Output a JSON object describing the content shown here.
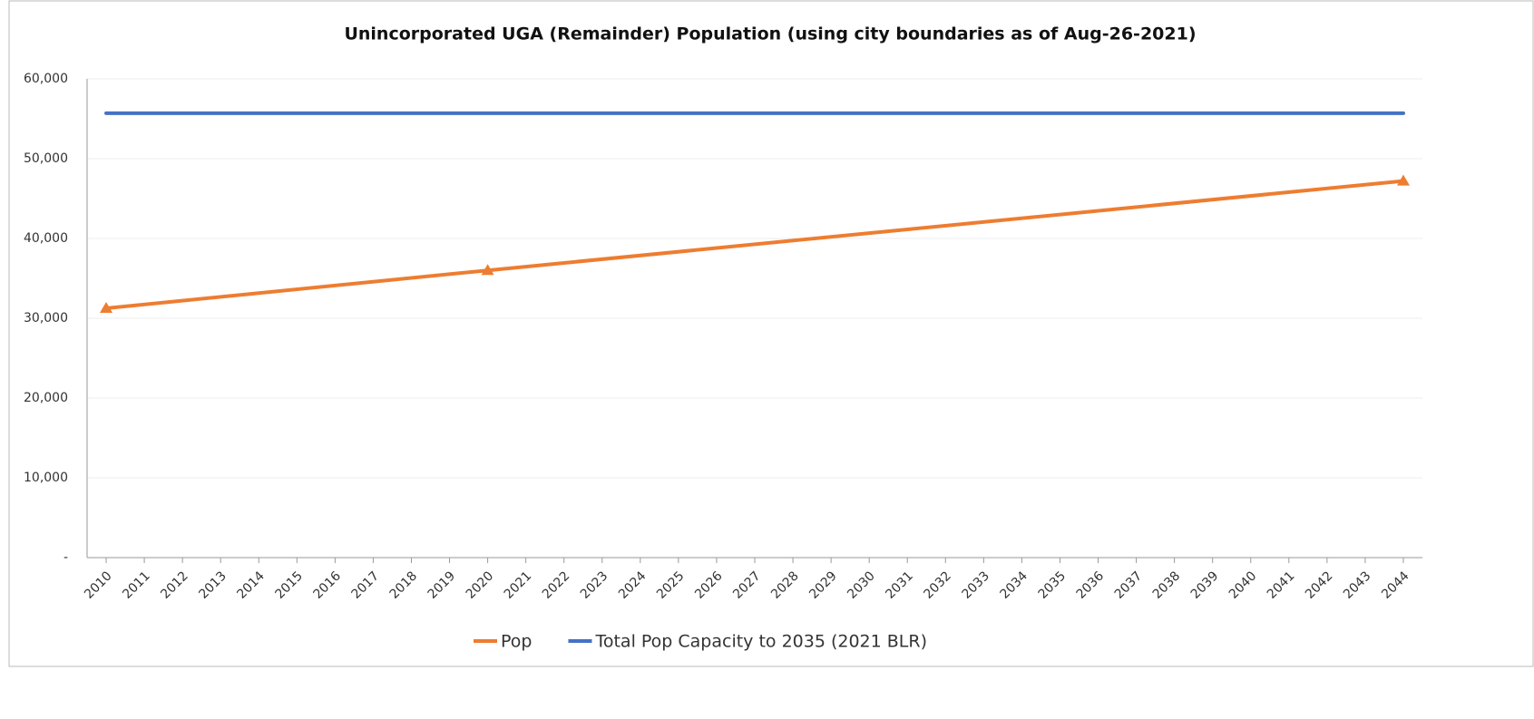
{
  "chart_data": {
    "type": "line",
    "title": "Unincorporated UGA (Remainder) Population (using city boundaries as of Aug-26-2021)",
    "xlim": [
      2009.5,
      2044.5
    ],
    "xticks": [
      2010,
      2011,
      2012,
      2013,
      2014,
      2015,
      2016,
      2017,
      2018,
      2019,
      2020,
      2021,
      2022,
      2023,
      2024,
      2025,
      2026,
      2027,
      2028,
      2029,
      2030,
      2031,
      2032,
      2033,
      2034,
      2035,
      2036,
      2037,
      2038,
      2039,
      2040,
      2041,
      2042,
      2043,
      2044
    ],
    "ylim": [
      0,
      60000
    ],
    "yticks": [
      {
        "value": 0,
        "label": "-"
      },
      {
        "value": 10000,
        "label": "10,000"
      },
      {
        "value": 20000,
        "label": "20,000"
      },
      {
        "value": 30000,
        "label": "30,000"
      },
      {
        "value": 40000,
        "label": "40,000"
      },
      {
        "value": 50000,
        "label": "50,000"
      },
      {
        "value": 60000,
        "label": "60,000"
      }
    ],
    "grid": true,
    "legend": "bottom",
    "series": [
      {
        "name": "Pop",
        "color": "#ed7d31",
        "marker": "triangle",
        "x": [
          2010,
          2020,
          2044
        ],
        "values": [
          31250,
          36000,
          47200
        ]
      },
      {
        "name": "Total Pop Capacity to 2035 (2021 BLR)",
        "color": "#4472c4",
        "x": [
          2010,
          2044
        ],
        "values": [
          55700,
          55700
        ]
      }
    ]
  }
}
